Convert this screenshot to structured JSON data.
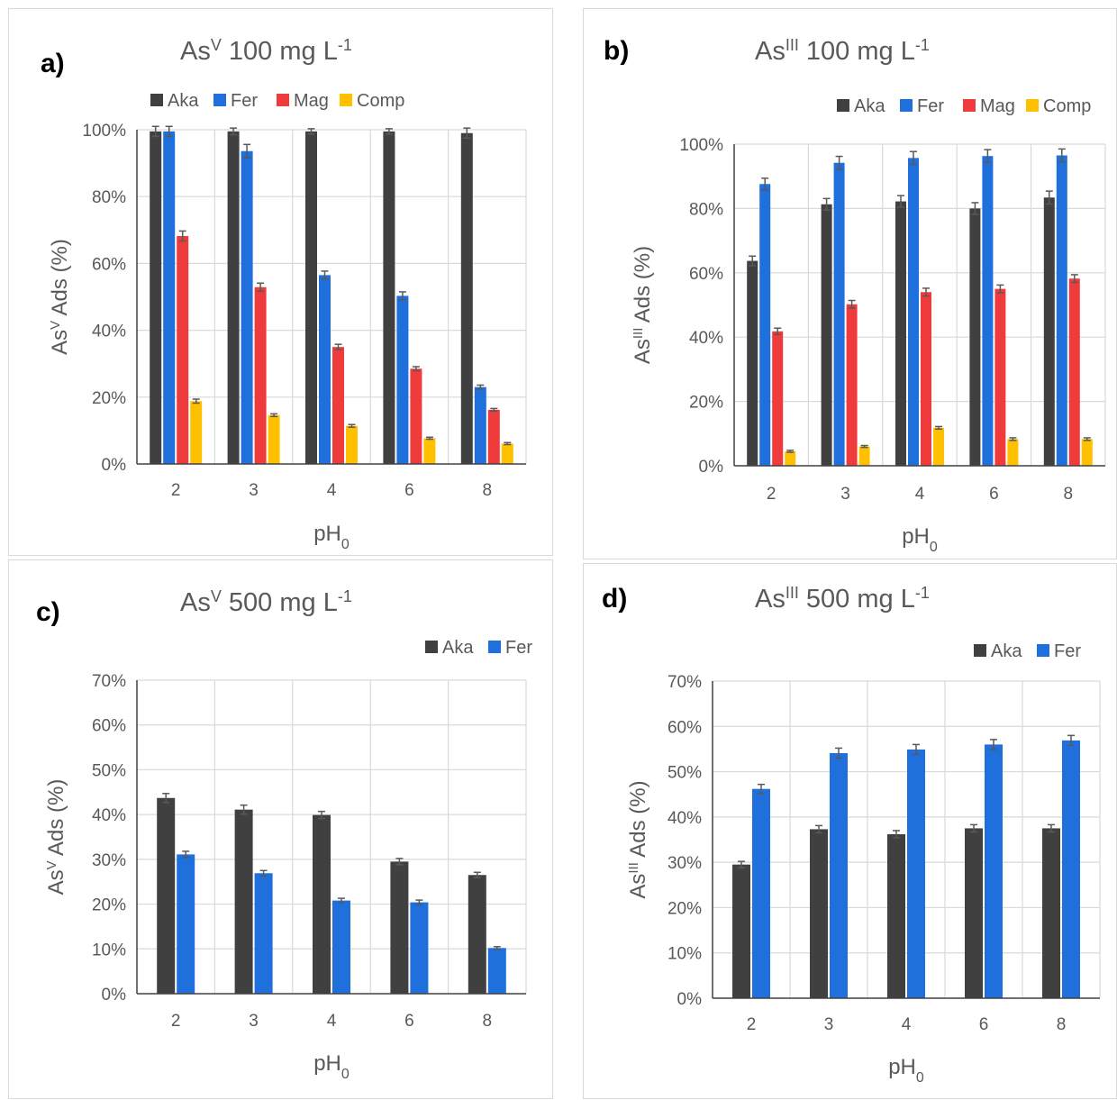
{
  "colors": {
    "Aka": "#404040",
    "Fer": "#1f6fdc",
    "Mag": "#ef3b3b",
    "Comp": "#ffc000",
    "grid": "#d9d9d9",
    "axis": "#404040",
    "error": "#595959"
  },
  "chart_data": [
    {
      "panel": "a)",
      "type": "bar",
      "title": {
        "base": "As",
        "sup": "V",
        "rest": " 100 mg L",
        "sup2": "-1"
      },
      "xlabel": {
        "base": "pH",
        "sub": "0"
      },
      "ylabel": {
        "base": "As",
        "sup": "V",
        "rest": " Ads (%)"
      },
      "categories": [
        "2",
        "3",
        "4",
        "6",
        "8"
      ],
      "ylim": [
        0,
        100
      ],
      "yticks": [
        "0%",
        "20%",
        "40%",
        "60%",
        "80%",
        "100%"
      ],
      "grid": true,
      "legend": "top",
      "series": [
        {
          "name": "Aka",
          "values": [
            99.5,
            99.5,
            99.5,
            99.5,
            99.0
          ],
          "errors": [
            1.5,
            1.0,
            0.8,
            0.8,
            1.5
          ]
        },
        {
          "name": "Fer",
          "values": [
            99.5,
            93.6,
            56.5,
            50.3,
            23.0
          ],
          "errors": [
            1.5,
            2.0,
            1.2,
            1.2,
            0.6
          ]
        },
        {
          "name": "Mag",
          "values": [
            68.2,
            52.9,
            35.0,
            28.5,
            16.2
          ],
          "errors": [
            1.5,
            1.2,
            0.8,
            0.6,
            0.4
          ]
        },
        {
          "name": "Comp",
          "values": [
            18.8,
            14.6,
            11.4,
            7.7,
            6.1
          ],
          "errors": [
            0.6,
            0.4,
            0.4,
            0.3,
            0.3
          ]
        }
      ]
    },
    {
      "panel": "b)",
      "type": "bar",
      "title": {
        "base": "As",
        "sup": "III",
        "rest": " 100 mg L",
        "sup2": "-1"
      },
      "xlabel": {
        "base": "pH",
        "sub": "0"
      },
      "ylabel": {
        "base": "As",
        "sup": "III",
        "rest": " Ads (%)"
      },
      "categories": [
        "2",
        "3",
        "4",
        "6",
        "8"
      ],
      "ylim": [
        0,
        100
      ],
      "yticks": [
        "0%",
        "20%",
        "40%",
        "60%",
        "80%",
        "100%"
      ],
      "grid": true,
      "legend": "top-right",
      "series": [
        {
          "name": "Aka",
          "values": [
            63.7,
            81.3,
            82.2,
            80.0,
            83.4
          ],
          "errors": [
            1.5,
            1.8,
            1.8,
            1.8,
            2.0
          ]
        },
        {
          "name": "Fer",
          "values": [
            87.6,
            94.2,
            95.7,
            96.3,
            96.5
          ],
          "errors": [
            1.8,
            2.0,
            2.0,
            2.0,
            2.0
          ]
        },
        {
          "name": "Mag",
          "values": [
            41.8,
            50.2,
            54.0,
            55.0,
            58.2
          ],
          "errors": [
            1.0,
            1.2,
            1.2,
            1.2,
            1.2
          ]
        },
        {
          "name": "Comp",
          "values": [
            4.5,
            6.0,
            11.8,
            8.3,
            8.3
          ],
          "errors": [
            0.3,
            0.3,
            0.4,
            0.4,
            0.4
          ]
        }
      ]
    },
    {
      "panel": "c)",
      "type": "bar",
      "title": {
        "base": "As",
        "sup": "V",
        "rest": " 500 mg L",
        "sup2": "-1"
      },
      "xlabel": {
        "base": "pH",
        "sub": "0"
      },
      "ylabel": {
        "base": "As",
        "sup": "V",
        "rest": " Ads (%)"
      },
      "categories": [
        "2",
        "3",
        "4",
        "6",
        "8"
      ],
      "ylim": [
        0,
        70
      ],
      "yticks": [
        "0%",
        "10%",
        "20%",
        "30%",
        "40%",
        "50%",
        "60%",
        "70%"
      ],
      "grid": true,
      "legend": "top-right",
      "series": [
        {
          "name": "Aka",
          "values": [
            43.7,
            41.1,
            39.9,
            29.5,
            26.5
          ],
          "errors": [
            1.0,
            1.0,
            0.8,
            0.7,
            0.6
          ]
        },
        {
          "name": "Fer",
          "values": [
            31.1,
            26.9,
            20.8,
            20.4,
            10.2
          ],
          "errors": [
            0.7,
            0.6,
            0.5,
            0.5,
            0.3
          ]
        }
      ]
    },
    {
      "panel": "d)",
      "type": "bar",
      "title": {
        "base": "As",
        "sup": "III",
        "rest": " 500 mg L",
        "sup2": "-1"
      },
      "xlabel": {
        "base": "pH",
        "sub": "0"
      },
      "ylabel": {
        "base": "As",
        "sup": "III",
        "rest": " Ads (%)"
      },
      "categories": [
        "2",
        "3",
        "4",
        "6",
        "8"
      ],
      "ylim": [
        0,
        70
      ],
      "yticks": [
        "0%",
        "10%",
        "20%",
        "30%",
        "40%",
        "50%",
        "60%",
        "70%"
      ],
      "grid": true,
      "legend": "top-right",
      "series": [
        {
          "name": "Aka",
          "values": [
            29.5,
            37.3,
            36.2,
            37.5,
            37.5
          ],
          "errors": [
            0.7,
            0.8,
            0.8,
            0.8,
            0.8
          ]
        },
        {
          "name": "Fer",
          "values": [
            46.2,
            54.1,
            54.9,
            56.0,
            56.9
          ],
          "errors": [
            1.0,
            1.1,
            1.1,
            1.1,
            1.1
          ]
        }
      ]
    }
  ]
}
